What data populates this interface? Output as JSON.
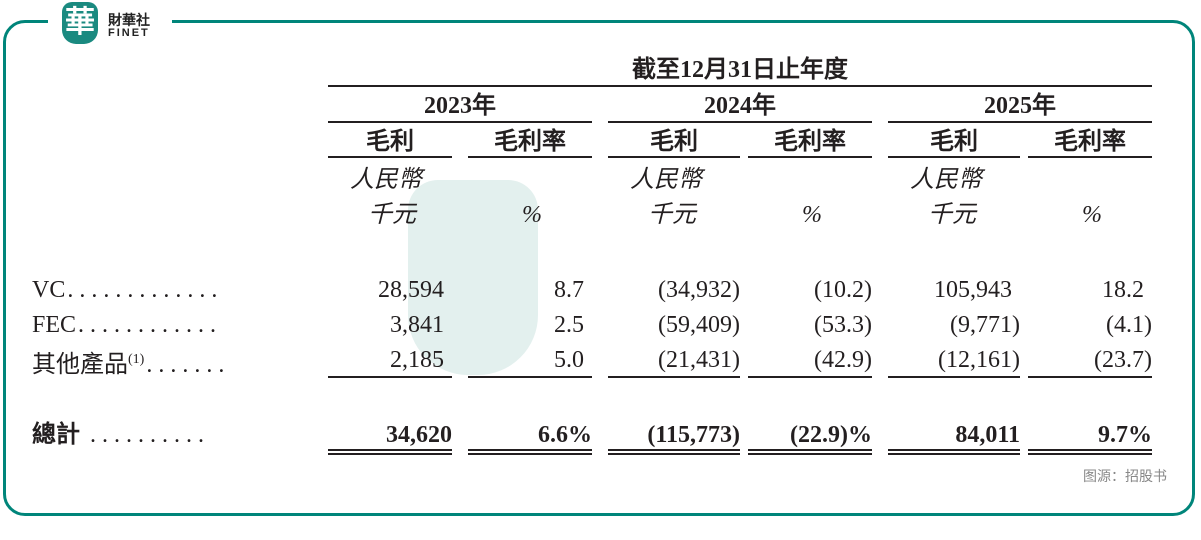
{
  "logo": {
    "cn": "財華社",
    "en": "FINET",
    "seal": "華"
  },
  "header": {
    "period": "截至12月31日止年度",
    "years": [
      "2023年",
      "2024年",
      "2025年"
    ],
    "col_gross_profit": "毛利",
    "col_gross_margin": "毛利率",
    "unit_currency": "人民幣",
    "unit_thousand": "千元",
    "unit_percent": "%"
  },
  "rows": [
    {
      "label": "VC",
      "dots": ". . . . . . . . . . . . .",
      "values": [
        "28,594",
        "8.7",
        "(34,932)",
        "(10.2)",
        "105,943",
        "18.2"
      ]
    },
    {
      "label": "FEC",
      "dots": ". . . . . . . . . . . .",
      "values": [
        "3,841",
        "2.5",
        "(59,409)",
        "(53.3)",
        "(9,771)",
        "(4.1)"
      ]
    },
    {
      "label": "其他產品",
      "sup": "(1)",
      "dots": ". . . . . . .",
      "values": [
        "2,185",
        "5.0",
        "(21,431)",
        "(42.9)",
        "(12,161)",
        "(23.7)"
      ]
    }
  ],
  "total": {
    "label": "總計",
    "dots": ". . . . . . . . . .",
    "values": [
      "34,620",
      "6.6%",
      "(115,773)",
      "(22.9)%",
      "84,011",
      "9.7%"
    ]
  },
  "source": "图源：招股书",
  "colors": {
    "frame": "#00857a",
    "text": "#231f20"
  }
}
